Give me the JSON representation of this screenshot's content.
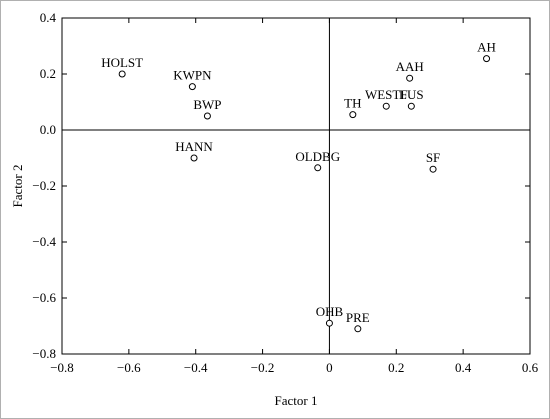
{
  "chart_data": {
    "type": "scatter",
    "title": "",
    "xlabel": "Factor 1",
    "ylabel": "Factor 2",
    "xlim": [
      -0.8,
      0.6
    ],
    "ylim": [
      -0.8,
      0.4
    ],
    "xticks": [
      -0.8,
      -0.6,
      -0.4,
      -0.2,
      0,
      0.2,
      0.4,
      0.6
    ],
    "yticks": [
      -0.8,
      -0.6,
      -0.4,
      -0.2,
      0,
      0.2,
      0.4
    ],
    "xtick_labels": [
      "−0.8",
      "−0.6",
      "−0.4",
      "−0.2",
      "0",
      "0.2",
      "0.4",
      "0.6"
    ],
    "ytick_labels": [
      "−0.8",
      "−0.6",
      "−0.4",
      "−0.2",
      "0.0",
      "0.2",
      "0.4"
    ],
    "reference_lines": {
      "x": 0,
      "y": 0
    },
    "grid": false,
    "points": [
      {
        "label": "HOLST",
        "x": -0.62,
        "y": 0.2
      },
      {
        "label": "KWPN",
        "x": -0.41,
        "y": 0.155
      },
      {
        "label": "BWP",
        "x": -0.365,
        "y": 0.05
      },
      {
        "label": "HANN",
        "x": -0.405,
        "y": -0.1
      },
      {
        "label": "OLDBG",
        "x": -0.035,
        "y": -0.135
      },
      {
        "label": "TH",
        "x": 0.07,
        "y": 0.055
      },
      {
        "label": "WESTF",
        "x": 0.17,
        "y": 0.085
      },
      {
        "label": "LUS",
        "x": 0.245,
        "y": 0.085
      },
      {
        "label": "AAH",
        "x": 0.24,
        "y": 0.185
      },
      {
        "label": "AH",
        "x": 0.47,
        "y": 0.255
      },
      {
        "label": "SF",
        "x": 0.31,
        "y": -0.14
      },
      {
        "label": "OHB",
        "x": 0.0,
        "y": -0.69
      },
      {
        "label": "PRE",
        "x": 0.085,
        "y": -0.71
      }
    ]
  }
}
